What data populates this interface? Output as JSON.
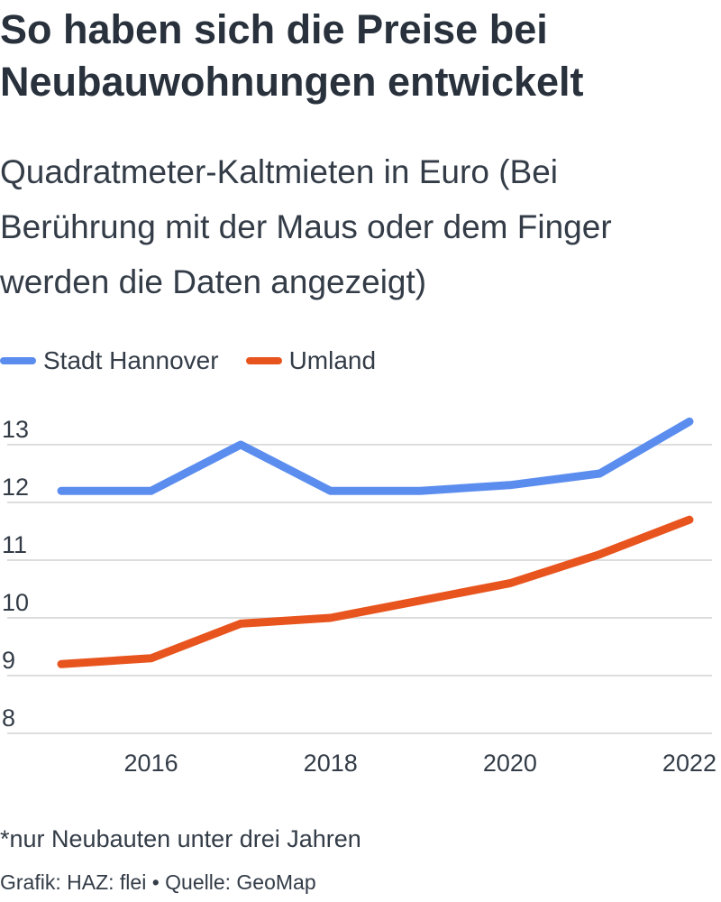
{
  "title": "So haben sich die Preise bei Neubauwohnungen entwickelt",
  "subtitle": "Quadratmeter-Kaltmieten in Euro (Bei Berührung mit der Maus oder dem Finger werden die Daten angezeigt)",
  "footnote": "*nur Neubauten unter drei Jahren",
  "source": "Grafik: HAZ: flei • Quelle: GeoMap",
  "colors": {
    "stadt": "#5b8def",
    "umland": "#e8541e",
    "grid": "#dddddd"
  },
  "chart_data": {
    "type": "line",
    "title": "So haben sich die Preise bei Neubauwohnungen entwickelt",
    "subtitle": "Quadratmeter-Kaltmieten in Euro (Bei Berührung mit der Maus oder dem Finger werden die Daten angezeigt)",
    "xlabel": "",
    "ylabel": "",
    "x": [
      2015,
      2016,
      2017,
      2018,
      2019,
      2020,
      2021,
      2022
    ],
    "x_ticks": [
      "2016",
      "2018",
      "2020",
      "2022"
    ],
    "y_tick_labels": [
      "13",
      "12",
      "11",
      "10",
      "9",
      "8"
    ],
    "ylim": [
      8,
      13
    ],
    "grid": true,
    "legend": "top-left",
    "series": [
      {
        "name": "Stadt Hannover",
        "values": [
          12.2,
          12.2,
          13.0,
          12.2,
          12.2,
          12.3,
          12.5,
          13.4
        ]
      },
      {
        "name": "Umland",
        "values": [
          9.2,
          9.3,
          9.9,
          10.0,
          10.3,
          10.6,
          11.1,
          11.7
        ]
      }
    ]
  }
}
